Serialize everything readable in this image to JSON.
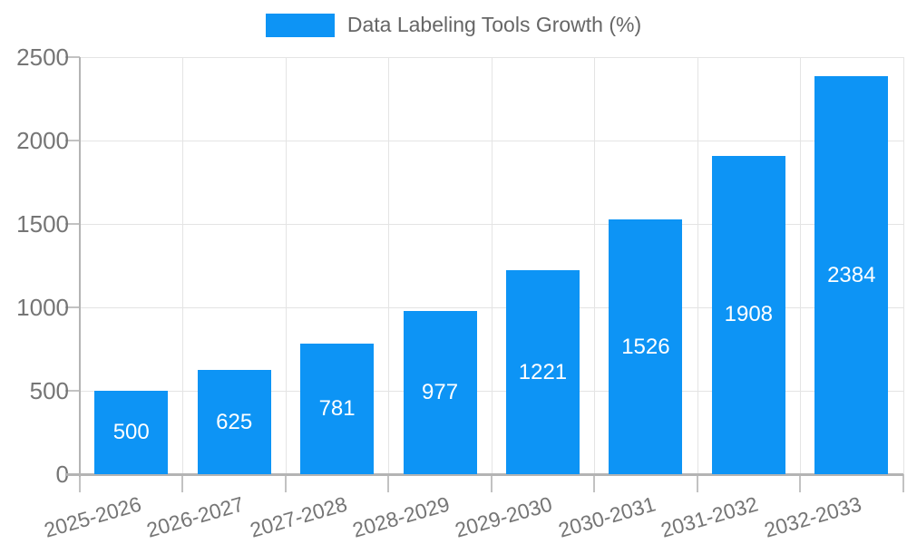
{
  "legend": {
    "label": "Data Labeling Tools Growth (%)"
  },
  "colors": {
    "bar": "#0D94F5",
    "bar_label": "#ffffff",
    "axis_text": "#757575",
    "legend_text": "#666666",
    "grid": "#e4e4e4",
    "axis_line": "#b4b4b4",
    "tick": "#c2c2c2"
  },
  "chart_data": {
    "type": "bar",
    "title": "Data Labeling Tools Growth (%)",
    "categories": [
      "2025-2026",
      "2026-2027",
      "2027-2028",
      "2028-2029",
      "2029-2030",
      "2030-2031",
      "2031-2032",
      "2032-2033"
    ],
    "values": [
      500,
      625,
      781,
      977,
      1221,
      1526,
      1908,
      2384
    ],
    "xlabel": "",
    "ylabel": "",
    "ylim": [
      0,
      2500
    ],
    "yticks": [
      0,
      500,
      1000,
      1500,
      2000,
      2500
    ],
    "grid": true,
    "legend_position": "top",
    "bar_value_labels": "inside-center",
    "x_tick_rotation_deg": -16
  }
}
